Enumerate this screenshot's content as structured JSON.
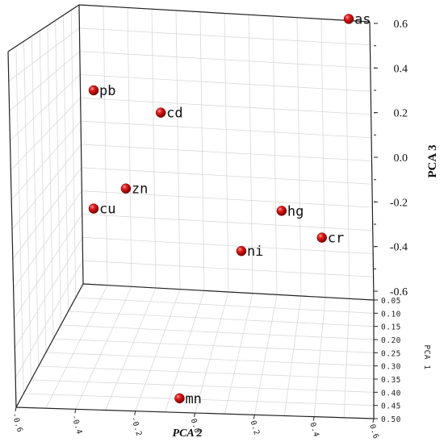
{
  "chart_data": {
    "type": "scatter",
    "subtype": "3d",
    "xlabel": "PCA 1",
    "ylabel": "PCA 2",
    "zlabel": "PCA 3",
    "xlim": [
      0.05,
      0.5
    ],
    "ylim": [
      -0.6,
      0.6
    ],
    "zlim": [
      -0.6,
      0.6
    ],
    "x_ticks": [
      "0.05",
      "0.10",
      "0.15",
      "0.20",
      "0.25",
      "0.30",
      "0.35",
      "0.40",
      "0.45",
      "0.50"
    ],
    "y_ticks": [
      "-0.6",
      "-0.4",
      "-0.2",
      "0.0",
      "0.2",
      "0.4",
      "0.6"
    ],
    "z_ticks": [
      "-0.6",
      "-0.4",
      "-0.2",
      "0.0",
      "0.2",
      "0.4",
      "0.6"
    ],
    "marker_color": "#d40000",
    "grid": true,
    "points": [
      {
        "label": "as",
        "x": 0.3,
        "y": 0.7,
        "z": 0.62
      },
      {
        "label": "pb",
        "x": 0.3,
        "y": -0.25,
        "z": 0.3
      },
      {
        "label": "cd",
        "x": 0.3,
        "y": 0.0,
        "z": 0.2
      },
      {
        "label": "zn",
        "x": 0.3,
        "y": -0.13,
        "z": -0.14
      },
      {
        "label": "cu",
        "x": 0.3,
        "y": -0.25,
        "z": -0.23
      },
      {
        "label": "hg",
        "x": 0.3,
        "y": 0.45,
        "z": -0.24
      },
      {
        "label": "cr",
        "x": 0.3,
        "y": 0.6,
        "z": -0.36
      },
      {
        "label": "ni",
        "x": 0.3,
        "y": 0.3,
        "z": -0.42
      },
      {
        "label": "mn",
        "x": 0.3,
        "y": 0.07,
        "z": -1.08
      }
    ]
  }
}
